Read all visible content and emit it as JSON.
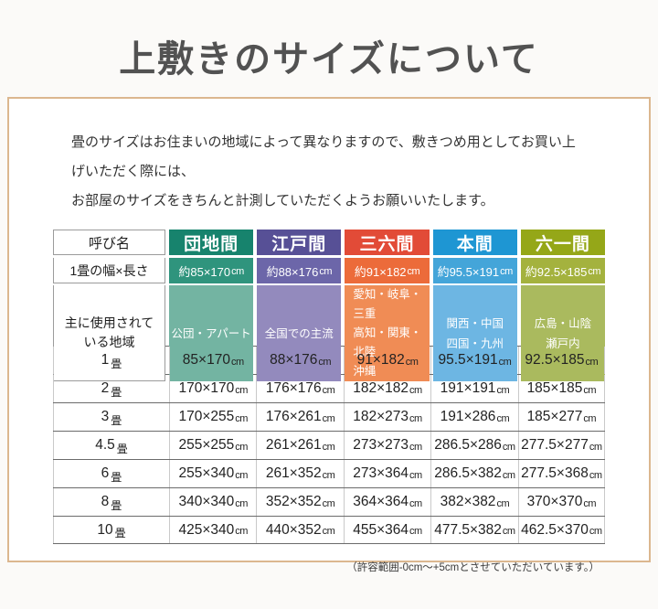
{
  "page": {
    "title": "上敷きのサイズについて",
    "intro_line1": "畳のサイズはお住まいの地域によって異なりますので、敷きつめ用としてお買い上げいただく際には、",
    "intro_line2": "お部屋のサイズをきちんと計測していただくようお願いいたします。",
    "footnote": "（許容範囲-0cm〜+5cmとさせていただいています。）"
  },
  "table": {
    "corner_header": "呼び名",
    "row_size_label": "1畳の幅×長さ",
    "row_region_label_line1": "主に使用されて",
    "row_region_label_line2": "いる地域",
    "unit": "cm",
    "size_prefix": "約",
    "tatami_suffix": "畳",
    "columns": [
      {
        "name": "団地間",
        "one_tatami": "約85×170",
        "regions": [
          "公団・アパート"
        ],
        "colors": {
          "header": "#17836d",
          "size": "#2f947d",
          "region": "#73b4a2"
        }
      },
      {
        "name": "江戸間",
        "one_tatami": "約88×176",
        "regions": [
          "全国での主流"
        ],
        "colors": {
          "header": "#575096",
          "size": "#6c66a9",
          "region": "#938abd"
        }
      },
      {
        "name": "三六間",
        "one_tatami": "約91×182",
        "regions": [
          "愛知・岐阜・三重",
          "高知・関東・北陸",
          "沖縄"
        ],
        "colors": {
          "header": "#e24b37",
          "size": "#ec6b3a",
          "region": "#f08c55"
        }
      },
      {
        "name": "本間",
        "one_tatami": "約95.5×191",
        "regions": [
          "関西・中国",
          "四国・九州"
        ],
        "colors": {
          "header": "#1e96d3",
          "size": "#44a5d9",
          "region": "#6db6e3"
        }
      },
      {
        "name": "六一間",
        "one_tatami": "約92.5×185",
        "regions": [
          "広島・山陰",
          "瀬戸内"
        ],
        "colors": {
          "header": "#95a718",
          "size": "#a4b23e",
          "region": "#aaba5e"
        }
      }
    ],
    "size_rows": [
      {
        "label": "1",
        "values": [
          "85×170",
          "88×176",
          "91×182",
          "95.5×191",
          "92.5×185"
        ]
      },
      {
        "label": "2",
        "values": [
          "170×170",
          "176×176",
          "182×182",
          "191×191",
          "185×185"
        ]
      },
      {
        "label": "3",
        "values": [
          "170×255",
          "176×261",
          "182×273",
          "191×286",
          "185×277"
        ]
      },
      {
        "label": "4.5",
        "values": [
          "255×255",
          "261×261",
          "273×273",
          "286.5×286",
          "277.5×277"
        ]
      },
      {
        "label": "6",
        "values": [
          "255×340",
          "261×352",
          "273×364",
          "286.5×382",
          "277.5×368"
        ]
      },
      {
        "label": "8",
        "values": [
          "340×340",
          "352×352",
          "364×364",
          "382×382",
          "370×370"
        ]
      },
      {
        "label": "10",
        "values": [
          "425×340",
          "440×352",
          "455×364",
          "477.5×382",
          "462.5×370"
        ]
      }
    ]
  }
}
